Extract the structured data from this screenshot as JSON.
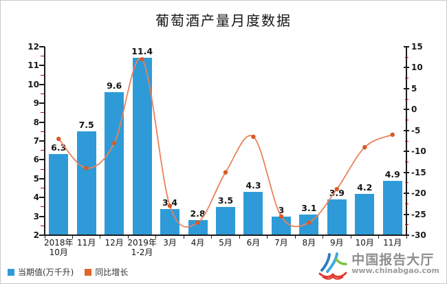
{
  "title": "葡萄酒产量月度数据",
  "chart_data": {
    "type": "bar",
    "subtype": "bar+line dual-axis combo",
    "title": "葡萄酒产量月度数据",
    "categories": [
      "2018年\n10月",
      "11月",
      "12月",
      "2019年\n1-2月",
      "3月",
      "4月",
      "5月",
      "6月",
      "7月",
      "8月",
      "9月",
      "10月",
      "11月"
    ],
    "series": [
      {
        "name": "当期值(万千升)",
        "type": "bar",
        "axis": "left",
        "color": "#2E9BD8",
        "values": [
          6.3,
          7.5,
          9.6,
          11.4,
          3.4,
          2.8,
          3.5,
          4.3,
          3,
          3.1,
          3.9,
          4.2,
          4.9
        ],
        "data_labels_shown": true
      },
      {
        "name": "同比增长",
        "type": "line",
        "axis": "right",
        "color": "#EA8158",
        "marker_color": "#D85A28",
        "values": [
          -7,
          -14,
          -8,
          12,
          -23,
          -27,
          -15,
          -6.5,
          -25.5,
          -27,
          -19,
          -9,
          -6
        ],
        "data_labels_shown": false
      }
    ],
    "left_axis": {
      "min": 2,
      "max": 12,
      "step": 1,
      "minor_step": 0.5
    },
    "right_axis": {
      "min": -30,
      "max": 15,
      "step": 5,
      "minor_step": 2.5
    },
    "grid": false,
    "legend_position": "bottom-left"
  },
  "legend": {
    "items": [
      {
        "label": "当期值(万千升)",
        "color": "#2E9BD8"
      },
      {
        "label": "同比增长",
        "color": "#E2632B"
      }
    ]
  },
  "watermark": {
    "brand": "中国报告大厅",
    "url": "www.chinabgao.com"
  },
  "colors": {
    "bar": "#2E9BD8",
    "line": "#EA8158",
    "marker": "#D85A28",
    "axis": "#1A1A1A",
    "minor_tick": "#C00000",
    "text": "#1F1F1F",
    "logo_text": "#8E8E8E"
  }
}
